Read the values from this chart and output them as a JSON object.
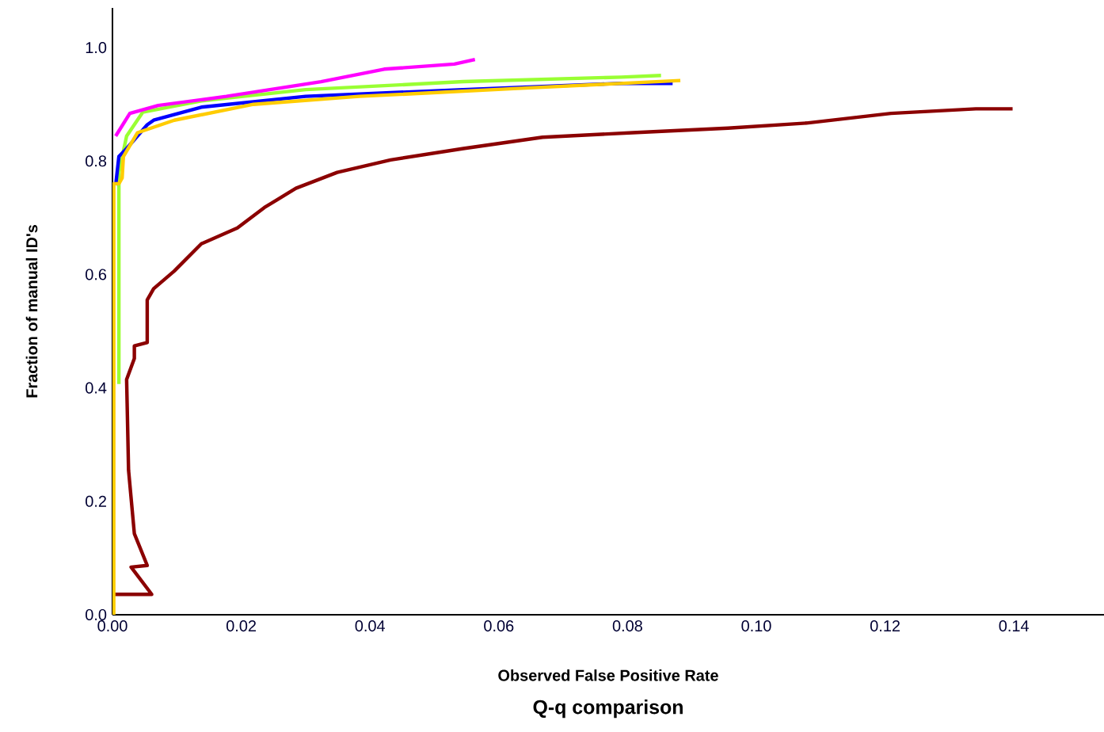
{
  "chart_data": {
    "type": "line",
    "title": "Q-q comparison",
    "xlabel": "Observed False Positive Rate",
    "ylabel": "Fraction of manual ID's",
    "xlim": [
      0,
      0.154
    ],
    "ylim": [
      0,
      1.07
    ],
    "xticks": [
      {
        "value": 0,
        "label": "0.00"
      },
      {
        "value": 0.02,
        "label": "0.02"
      },
      {
        "value": 0.04,
        "label": "0.04"
      },
      {
        "value": 0.06,
        "label": "0.06"
      },
      {
        "value": 0.08,
        "label": "0.08"
      },
      {
        "value": 0.1,
        "label": "0.10"
      },
      {
        "value": 0.12,
        "label": "0.12"
      },
      {
        "value": 0.14,
        "label": "0.14"
      }
    ],
    "yticks": [
      {
        "value": 0,
        "label": "0.0"
      },
      {
        "value": 0.2,
        "label": "0.2"
      },
      {
        "value": 0.4,
        "label": "0.4"
      },
      {
        "value": 0.6,
        "label": "0.6"
      },
      {
        "value": 0.8,
        "label": "0.8"
      },
      {
        "value": 1.0,
        "label": "1.0"
      }
    ],
    "marker": "none",
    "line_style": "solid",
    "series": [
      {
        "color": "#8b0000",
        "x": [
          0.0002,
          0.0061,
          0.0029,
          0.0054,
          0.0034,
          0.0025,
          0.0022,
          0.0034,
          0.0034,
          0.0054,
          0.0054,
          0.0064,
          0.0096,
          0.0138,
          0.0194,
          0.0236,
          0.0285,
          0.0349,
          0.0432,
          0.0545,
          0.0668,
          0.0808,
          0.0956,
          0.1078,
          0.1209,
          0.1341,
          0.1398
        ],
        "values": [
          0.036,
          0.036,
          0.084,
          0.087,
          0.143,
          0.255,
          0.415,
          0.452,
          0.474,
          0.48,
          0.555,
          0.575,
          0.606,
          0.654,
          0.682,
          0.718,
          0.752,
          0.78,
          0.802,
          0.822,
          0.842,
          0.85,
          0.858,
          0.867,
          0.884,
          0.892,
          0.892
        ]
      },
      {
        "color": "#99ff33",
        "x": [
          0.001,
          0.001,
          0.0022,
          0.0047,
          0.0138,
          0.03,
          0.0545,
          0.079,
          0.0852
        ],
        "values": [
          0.407,
          0.78,
          0.844,
          0.886,
          0.906,
          0.926,
          0.94,
          0.948,
          0.951
        ]
      },
      {
        "color": "#0000ff",
        "x": [
          0.0005,
          0.001,
          0.0022,
          0.0054,
          0.0064,
          0.0138,
          0.03,
          0.0545,
          0.079,
          0.087
        ],
        "values": [
          0.757,
          0.808,
          0.822,
          0.864,
          0.872,
          0.895,
          0.914,
          0.926,
          0.937,
          0.937
        ]
      },
      {
        "color": "#ffcc00",
        "x": [
          0.0002,
          0.0002,
          0.001,
          0.0015,
          0.0017,
          0.0039,
          0.0096,
          0.0219,
          0.0383,
          0.0629,
          0.0882
        ],
        "values": [
          0.0,
          0.76,
          0.76,
          0.77,
          0.808,
          0.85,
          0.872,
          0.9,
          0.914,
          0.928,
          0.942
        ]
      },
      {
        "color": "#ff00ff",
        "x": [
          0.0005,
          0.0027,
          0.0071,
          0.0177,
          0.0324,
          0.0422,
          0.0531,
          0.0563
        ],
        "values": [
          0.844,
          0.884,
          0.898,
          0.914,
          0.94,
          0.962,
          0.971,
          0.979
        ]
      }
    ]
  }
}
